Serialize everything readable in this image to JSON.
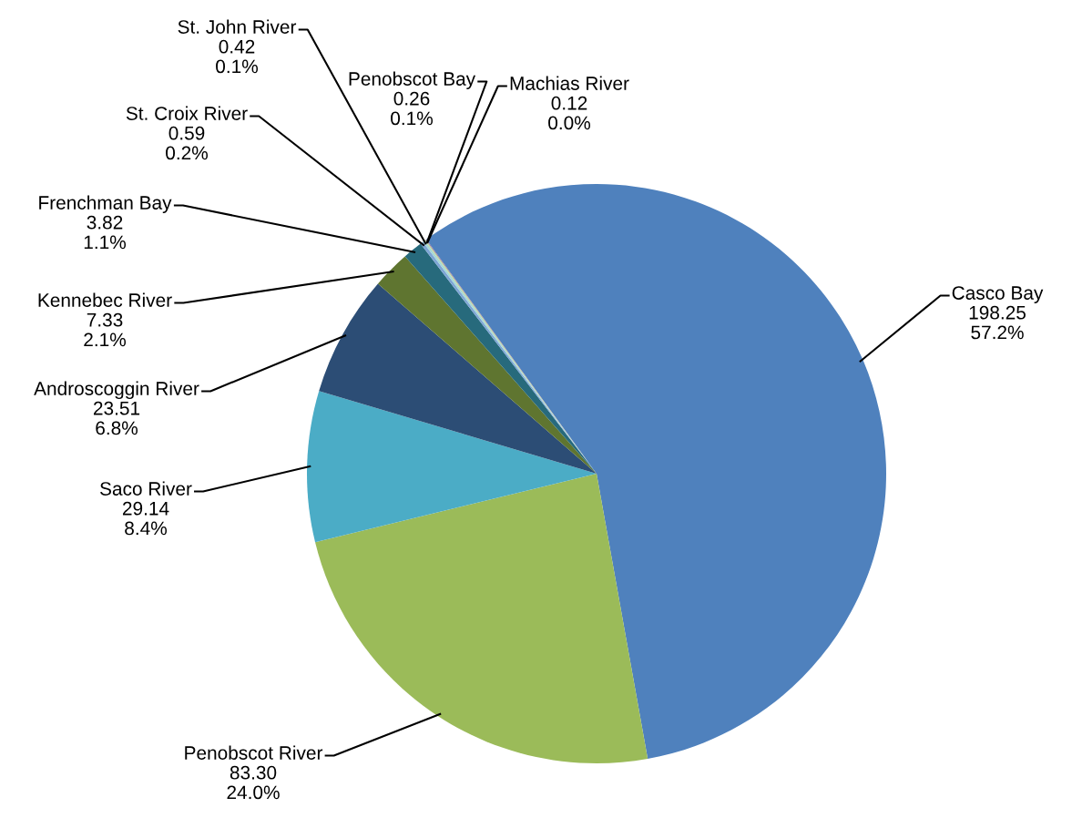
{
  "chart_data": {
    "type": "pie",
    "categories": [
      "Casco Bay",
      "Penobscot River",
      "Saco River",
      "Androscoggin River",
      "Kennebec River",
      "Frenchman Bay",
      "St. Croix River",
      "St. John River",
      "Penobscot Bay",
      "Machias River"
    ],
    "values": [
      198.25,
      83.3,
      29.14,
      23.51,
      7.33,
      3.82,
      0.59,
      0.42,
      0.26,
      0.12
    ],
    "value_labels": [
      "198.25\n57.2%",
      "83.30\n24.0%",
      "29.14\n8.4%",
      "23.51\n6.8%",
      "7.33\n2.1%",
      "3.82\n1.1%",
      "0.59\n0.2%",
      "0.42\n0.1%",
      "0.26\n0.1%",
      "0.12\n0.0%"
    ],
    "colors": [
      "#4f81bd",
      "#9bbb59",
      "#4bacc6",
      "#2c4d75",
      "#5f7530",
      "#276a7c",
      "#7ea6d6",
      "#a6d8d8",
      "#c3d69b",
      "#8064a2"
    ],
    "legend": false
  }
}
